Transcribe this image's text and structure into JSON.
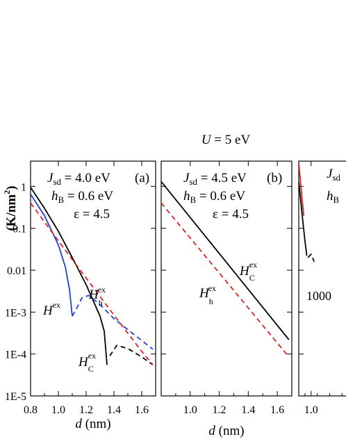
{
  "figure_title": "U = 5 eV",
  "ylabel": "(K/nm²)",
  "chart_data": [
    {
      "panel_id": "a",
      "panel_label": "(a)",
      "type": "line",
      "yscale": "log",
      "xlabel": "d (nm)",
      "ylabel": "(K/nm²)",
      "xlim": [
        0.8,
        1.7
      ],
      "ylim": [
        1e-05,
        4
      ],
      "xticks": [
        "0.8",
        "1.0",
        "1.2",
        "1.4",
        "1.6"
      ],
      "yticks": [
        "1",
        "0.1",
        "0.01",
        "1E-3",
        "1E-4",
        "1E-5"
      ],
      "params": {
        "Jsd": "4.0 eV",
        "hB": "0.6 eV",
        "epsilon": "4.5"
      },
      "series": [
        {
          "name": "H^ex_C",
          "color": "#000000",
          "dash": "solid",
          "points": [
            [
              0.8,
              0.95
            ],
            [
              0.9,
              0.3
            ],
            [
              1.0,
              0.085
            ],
            [
              1.1,
              0.02
            ],
            [
              1.2,
              0.0045
            ],
            [
              1.3,
              0.0008
            ],
            [
              1.33,
              0.00035
            ],
            [
              1.34,
              0.00014
            ],
            [
              1.35,
              5.5e-05
            ]
          ]
        },
        {
          "name": "H^ex_C",
          "color": "#000000",
          "dash": "dashed",
          "points": [
            [
              1.37,
              9e-05
            ],
            [
              1.42,
              0.00016
            ],
            [
              1.5,
              0.000135
            ],
            [
              1.6,
              8.5e-05
            ],
            [
              1.68,
              5.5e-05
            ]
          ]
        },
        {
          "name": "H^ex",
          "color": "#1f3fd6",
          "dash": "solid",
          "points": [
            [
              0.8,
              0.65
            ],
            [
              0.9,
              0.2
            ],
            [
              1.0,
              0.04
            ],
            [
              1.05,
              0.012
            ],
            [
              1.08,
              0.0035
            ],
            [
              1.1,
              0.0008
            ]
          ]
        },
        {
          "name": "H^ex",
          "color": "#1f3fd6",
          "dash": "dashed",
          "points": [
            [
              1.1,
              0.0008
            ],
            [
              1.13,
              0.0012
            ],
            [
              1.17,
              0.0022
            ],
            [
              1.22,
              0.0025
            ],
            [
              1.3,
              0.0015
            ],
            [
              1.4,
              0.0007
            ],
            [
              1.5,
              0.00038
            ],
            [
              1.6,
              0.00021
            ],
            [
              1.68,
              0.00013
            ]
          ]
        },
        {
          "name": "H^ex_h",
          "color": "#e02020",
          "dash": "dashed",
          "points": [
            [
              0.8,
              0.4
            ],
            [
              1.0,
              0.05
            ],
            [
              1.2,
              0.0065
            ],
            [
              1.4,
              0.00085
            ],
            [
              1.6,
              0.000115
            ],
            [
              1.68,
              5.5e-05
            ]
          ]
        }
      ],
      "annotations": [
        "H^ex_h",
        "H^ex",
        "H^ex_C"
      ]
    },
    {
      "panel_id": "b",
      "panel_label": "(b)",
      "type": "line",
      "yscale": "log",
      "xlabel": "d (nm)",
      "xlim": [
        0.8,
        1.7
      ],
      "ylim": [
        1e-05,
        4
      ],
      "xticks": [
        "1.0",
        "1.2",
        "1.4",
        "1.6"
      ],
      "params": {
        "Jsd": "4.5 eV",
        "hB": "0.6 eV",
        "epsilon": "4.5"
      },
      "series": [
        {
          "name": "H^ex_C",
          "color": "#000000",
          "dash": "solid",
          "points": [
            [
              0.8,
              1.3
            ],
            [
              1.68,
              0.00022
            ]
          ]
        },
        {
          "name": "H^ex_h",
          "color": "#e02020",
          "dash": "dashed",
          "points": [
            [
              0.8,
              0.4
            ],
            [
              1.68,
              8.5e-05
            ]
          ]
        }
      ],
      "annotations": [
        "H^ex_C",
        "H^ex_h"
      ]
    },
    {
      "panel_id": "c",
      "panel_label": "",
      "type": "line",
      "yscale": "log",
      "xlabel": "",
      "xlim": [
        0.8,
        1.7
      ],
      "ylim": [
        1e-05,
        4
      ],
      "xticks": [
        "1.0"
      ],
      "params": {
        "Jsd": "",
        "hB": ""
      },
      "series": [
        {
          "name": "",
          "color": "#e02020",
          "dash": "solid",
          "points": [
            [
              0.8,
              3.5
            ],
            [
              0.88,
              0.2
            ]
          ]
        },
        {
          "name": "",
          "color": "#000000",
          "dash": "solid",
          "points": [
            [
              0.8,
              1.3
            ],
            [
              0.85,
              0.25
            ],
            [
              0.9,
              0.05
            ],
            [
              0.93,
              0.022
            ]
          ]
        },
        {
          "name": "",
          "color": "#000000",
          "dash": "dashed",
          "points": [
            [
              0.95,
              0.02
            ],
            [
              1.0,
              0.024
            ],
            [
              1.05,
              0.016
            ]
          ]
        }
      ],
      "annotations": [
        "1000"
      ]
    }
  ]
}
